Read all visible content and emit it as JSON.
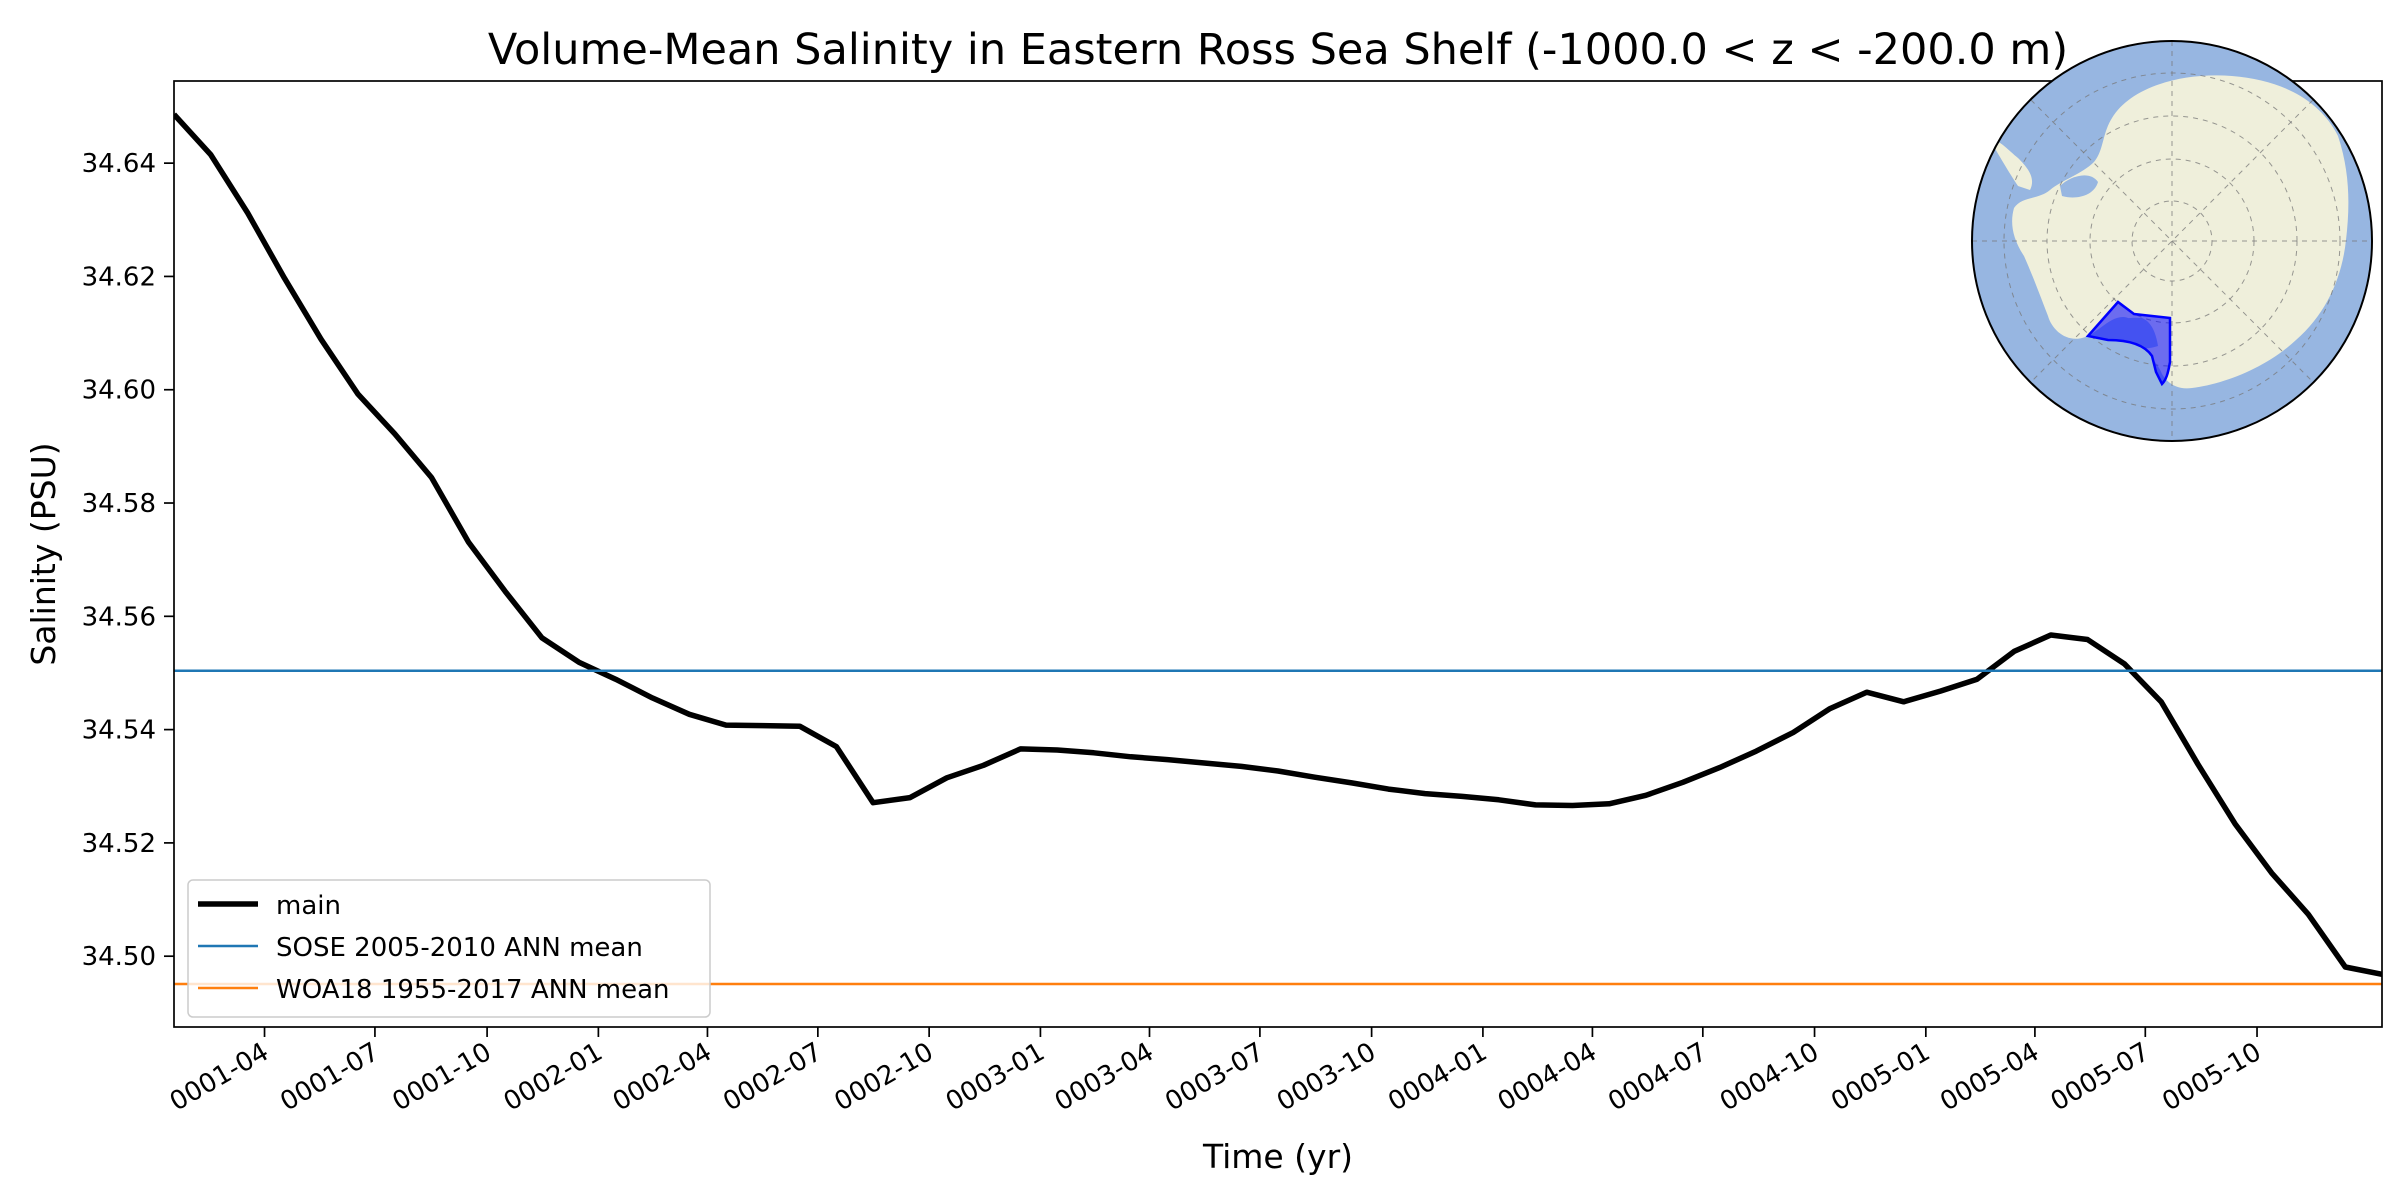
{
  "chart_data": {
    "type": "line",
    "title": "Volume-Mean Salinity in Eastern Ross Sea Shelf (-1000.0 < z < -200.0 m)",
    "xlabel": "Time (yr)",
    "ylabel": "Salinity (PSU)",
    "xlim": [
      0.0,
      5.0
    ],
    "ylim": [
      34.4875,
      34.6545
    ],
    "x_ticks": [
      {
        "label": "0001-04",
        "value": 0.205
      },
      {
        "label": "0001-07",
        "value": 0.455
      },
      {
        "label": "0001-10",
        "value": 0.709
      },
      {
        "label": "0002-01",
        "value": 0.961
      },
      {
        "label": "0002-04",
        "value": 1.208
      },
      {
        "label": "0002-07",
        "value": 1.458
      },
      {
        "label": "0002-10",
        "value": 1.71
      },
      {
        "label": "0003-01",
        "value": 1.962
      },
      {
        "label": "0003-04",
        "value": 2.209
      },
      {
        "label": "0003-07",
        "value": 2.459
      },
      {
        "label": "0003-10",
        "value": 2.712
      },
      {
        "label": "0004-01",
        "value": 2.964
      },
      {
        "label": "0004-04",
        "value": 3.212
      },
      {
        "label": "0004-07",
        "value": 3.462
      },
      {
        "label": "0004-10",
        "value": 3.715
      },
      {
        "label": "0005-01",
        "value": 3.967
      },
      {
        "label": "0005-04",
        "value": 4.214
      },
      {
        "label": "0005-07",
        "value": 4.464
      },
      {
        "label": "0005-10",
        "value": 4.717
      }
    ],
    "y_ticks": [
      {
        "label": "34.50",
        "value": 34.5
      },
      {
        "label": "34.52",
        "value": 34.52
      },
      {
        "label": "34.54",
        "value": 34.54
      },
      {
        "label": "34.56",
        "value": 34.56
      },
      {
        "label": "34.58",
        "value": 34.58
      },
      {
        "label": "34.60",
        "value": 34.6
      },
      {
        "label": "34.62",
        "value": 34.62
      },
      {
        "label": "34.64",
        "value": 34.64
      }
    ],
    "series": [
      {
        "name": "main",
        "color": "#000000",
        "x": [
          0.0,
          0.083,
          0.167,
          0.25,
          0.333,
          0.417,
          0.5,
          0.583,
          0.667,
          0.75,
          0.833,
          0.917,
          1.0,
          1.083,
          1.167,
          1.25,
          1.333,
          1.417,
          1.5,
          1.583,
          1.667,
          1.75,
          1.833,
          1.917,
          2.0,
          2.083,
          2.167,
          2.25,
          2.333,
          2.417,
          2.5,
          2.583,
          2.667,
          2.75,
          2.833,
          2.917,
          3.0,
          3.083,
          3.167,
          3.25,
          3.333,
          3.417,
          3.5,
          3.583,
          3.667,
          3.75,
          3.833,
          3.917,
          4.0,
          4.083,
          4.167,
          4.25,
          4.333,
          4.417,
          4.5,
          4.583,
          4.667,
          4.75,
          4.833,
          4.917,
          5.0
        ],
        "values": [
          34.6486,
          34.6415,
          34.6312,
          34.6197,
          34.6089,
          34.5992,
          34.5922,
          34.5845,
          34.5731,
          34.5644,
          34.5562,
          34.5519,
          34.5489,
          34.5456,
          34.5427,
          34.5408,
          34.5407,
          34.5406,
          34.537,
          34.5271,
          34.528,
          34.5315,
          34.5337,
          34.5366,
          34.5364,
          34.5359,
          34.5352,
          34.5347,
          34.5341,
          34.5335,
          34.5327,
          34.5316,
          34.5306,
          34.5295,
          34.5287,
          34.5282,
          34.5276,
          34.5267,
          34.5266,
          34.5269,
          34.5284,
          34.5307,
          34.5333,
          34.5362,
          34.5395,
          34.5437,
          34.5466,
          34.5449,
          34.5468,
          34.5489,
          34.5538,
          34.5567,
          34.5559,
          34.5516,
          34.5449,
          34.5339,
          34.5234,
          34.5147,
          34.5074,
          34.4981,
          34.4968
        ]
      },
      {
        "name": "SOSE 2005-2010 ANN mean",
        "color": "#1f77b4",
        "constant": 34.5504
      },
      {
        "name": "WOA18 1955-2017 ANN mean",
        "color": "#ff7f0e",
        "constant": 34.4951
      }
    ],
    "legend_position": "lower-left",
    "inset": {
      "type": "map",
      "projection": "south-polar-stereographic",
      "position": "top-right",
      "ocean_color": "#97b6e1",
      "land_color": "#efefdb",
      "highlight_color": "#0000ff",
      "highlight_region": "Eastern Ross Sea Shelf"
    }
  }
}
